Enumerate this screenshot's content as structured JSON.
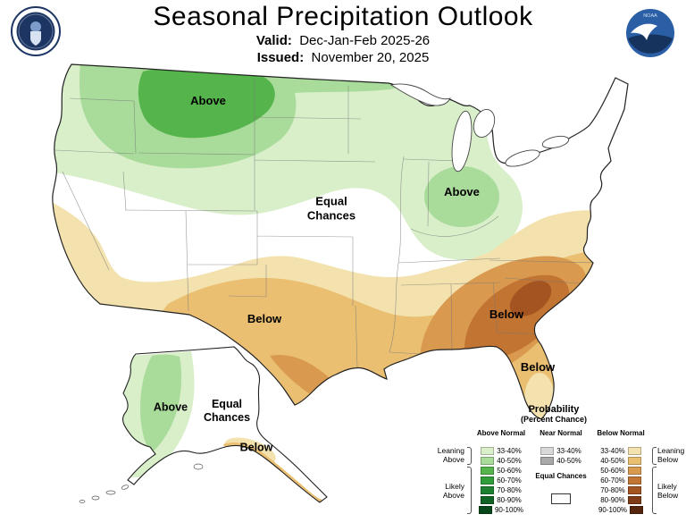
{
  "header": {
    "title": "Seasonal Precipitation Outlook",
    "valid_label": "Valid:",
    "valid_value": "Dec-Jan-Feb 2025-26",
    "issued_label": "Issued:",
    "issued_value": "November 20, 2025"
  },
  "logos": {
    "noaa_text": "NOAA"
  },
  "map": {
    "labels": {
      "northwest_above": "Above",
      "midwest_above": "Above",
      "central_equal_chances": "Equal Chances",
      "south_below": "Below",
      "southeast_below": "Below",
      "florida_below": "Below",
      "alaska_above": "Above",
      "alaska_equal_chances": "Equal Chances",
      "alaska_below": "Below"
    }
  },
  "legend": {
    "title": "Probability",
    "subtitle": "(Percent Chance)",
    "above": {
      "header": "Above Normal",
      "rows": [
        {
          "label": "33-40%",
          "color": "#d9efca"
        },
        {
          "label": "40-50%",
          "color": "#a9db9a"
        },
        {
          "label": "50-60%",
          "color": "#55b44b"
        },
        {
          "label": "60-70%",
          "color": "#2f9e3a"
        },
        {
          "label": "70-80%",
          "color": "#1d8030"
        },
        {
          "label": "80-90%",
          "color": "#116325"
        },
        {
          "label": "90-100%",
          "color": "#07481a"
        }
      ]
    },
    "near": {
      "header": "Near Normal",
      "rows": [
        {
          "label": "33-40%",
          "color": "#d8d8d8"
        },
        {
          "label": "40-50%",
          "color": "#a9a9a9"
        }
      ],
      "equal_chances_label": "Equal Chances",
      "equal_chances_color": "#ffffff"
    },
    "below": {
      "header": "Below Normal",
      "rows": [
        {
          "label": "33-40%",
          "color": "#f3e2ae"
        },
        {
          "label": "40-50%",
          "color": "#eabf72"
        },
        {
          "label": "50-60%",
          "color": "#d99a50"
        },
        {
          "label": "60-70%",
          "color": "#c27432"
        },
        {
          "label": "70-80%",
          "color": "#a35420"
        },
        {
          "label": "80-90%",
          "color": "#7e3b15"
        },
        {
          "label": "90-100%",
          "color": "#55250c"
        }
      ]
    },
    "side_labels": {
      "leaning_above": "Leaning Above",
      "likely_above": "Likely Above",
      "leaning_below": "Leaning Below",
      "likely_below": "Likely Below"
    }
  }
}
